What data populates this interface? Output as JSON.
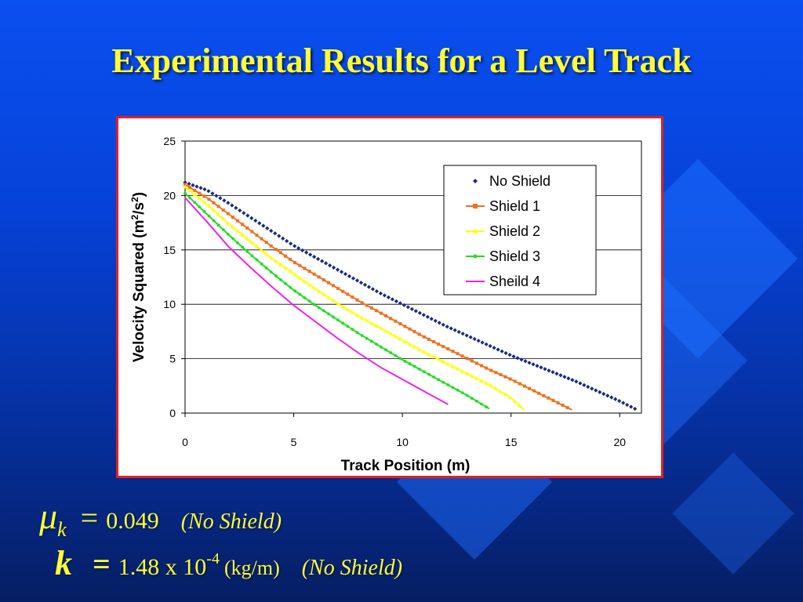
{
  "slide": {
    "title": "Experimental Results for a Level Track"
  },
  "formula1": {
    "symbol": "μ",
    "subscript": "k",
    "equals": "=",
    "value": "0.049",
    "note": "(No Shield)"
  },
  "formula2": {
    "symbol": "k",
    "equals": "=",
    "mantissa": "1.48 x 10",
    "exponent": "-4",
    "unit": "(kg/m)",
    "note": "(No Shield)"
  },
  "chart_data": {
    "type": "line",
    "xlabel": "Track Position (m)",
    "ylabel_parts": [
      "Velocity Squared (m",
      "2",
      "/s",
      "2",
      ")"
    ],
    "xlim": [
      0,
      21
    ],
    "ylim": [
      0,
      25
    ],
    "xticks": [
      0,
      5,
      10,
      15,
      20
    ],
    "yticks": [
      0,
      5,
      10,
      15,
      20,
      25
    ],
    "grid": "horizontal",
    "legend_position": "top-right",
    "series": [
      {
        "name": "No Shield",
        "color": "#1b2a80",
        "marker": "diamond",
        "x": [
          0,
          1,
          2,
          3,
          4,
          5,
          6,
          7,
          8,
          9,
          10,
          11,
          12,
          13,
          14,
          15,
          16,
          17,
          18,
          19,
          20,
          20.7
        ],
        "y": [
          21.2,
          20.5,
          19.3,
          18.0,
          16.7,
          15.4,
          14.3,
          13.2,
          12.1,
          11.0,
          10.0,
          9.0,
          8.0,
          7.1,
          6.2,
          5.3,
          4.5,
          3.7,
          2.9,
          2.0,
          1.1,
          0.4
        ]
      },
      {
        "name": "Shield 1",
        "color": "#f07020",
        "marker": "square",
        "x": [
          0,
          1,
          2,
          3,
          4,
          5,
          6,
          7,
          8,
          9,
          10,
          11,
          12,
          13,
          14,
          15,
          16,
          17,
          17.8
        ],
        "y": [
          21.0,
          19.8,
          18.3,
          16.8,
          15.3,
          13.9,
          12.7,
          11.5,
          10.3,
          9.2,
          8.1,
          7.0,
          6.0,
          5.0,
          4.0,
          3.1,
          2.1,
          1.1,
          0.3
        ]
      },
      {
        "name": "Shield 2",
        "color": "#ffff00",
        "marker": "triangle",
        "x": [
          0,
          1,
          2,
          3,
          4,
          5,
          6,
          7,
          8,
          9,
          10,
          11,
          12,
          13,
          14,
          15,
          15.6
        ],
        "y": [
          20.8,
          19.2,
          17.4,
          15.8,
          14.2,
          12.8,
          11.4,
          10.1,
          8.9,
          7.8,
          6.7,
          5.6,
          4.6,
          3.6,
          2.6,
          1.4,
          0.3
        ]
      },
      {
        "name": "Shield 3",
        "color": "#22dd22",
        "marker": "dot",
        "x": [
          0,
          1,
          2,
          3,
          4,
          5,
          6,
          7,
          8,
          9,
          10,
          11,
          12,
          13,
          14
        ],
        "y": [
          20.2,
          18.3,
          16.4,
          14.6,
          12.9,
          11.3,
          9.9,
          8.6,
          7.3,
          6.1,
          4.9,
          3.8,
          2.7,
          1.6,
          0.4
        ]
      },
      {
        "name": "Sheild 4",
        "color": "#ee22ee",
        "marker": "none",
        "x": [
          0,
          1,
          2,
          3,
          4,
          5,
          6,
          7,
          8,
          9,
          10,
          11,
          12.1
        ],
        "y": [
          19.8,
          17.6,
          15.3,
          13.4,
          11.6,
          9.9,
          8.4,
          6.9,
          5.5,
          4.2,
          3.1,
          2.0,
          0.8
        ]
      }
    ]
  }
}
